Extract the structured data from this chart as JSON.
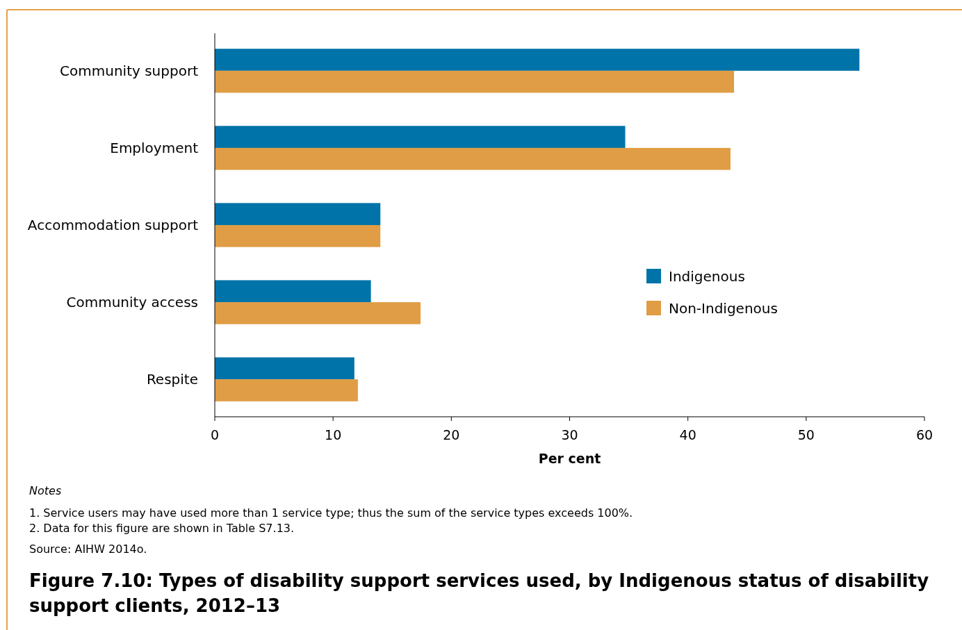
{
  "chart_data": {
    "type": "bar",
    "orientation": "horizontal",
    "title": "Figure 7.10: Types of disability support services used, by Indigenous status of disability support clients, 2012–13",
    "xlabel": "Per cent",
    "categories": [
      "Community support",
      "Employment",
      "Accommodation support",
      "Community access",
      "Respite"
    ],
    "series": [
      {
        "name": "Indigenous",
        "color": "#0073a8",
        "values": [
          54.5,
          34.7,
          14.0,
          13.2,
          11.8
        ]
      },
      {
        "name": "Non-Indigenous",
        "color": "#e09d45",
        "values": [
          43.9,
          43.6,
          14.0,
          17.4,
          12.1
        ]
      }
    ],
    "xlim": [
      0,
      60
    ],
    "xticks": [
      0,
      10,
      20,
      30,
      40,
      50,
      60
    ],
    "grid": false,
    "legend": "right",
    "annotations": [
      "Notes",
      "1.   Service users may have used more than 1 service type; thus the sum of the service types exceeds 100%.",
      "2.   Data for this figure are shown in Table S7.13.",
      "Source: AIHW 2014o."
    ]
  }
}
